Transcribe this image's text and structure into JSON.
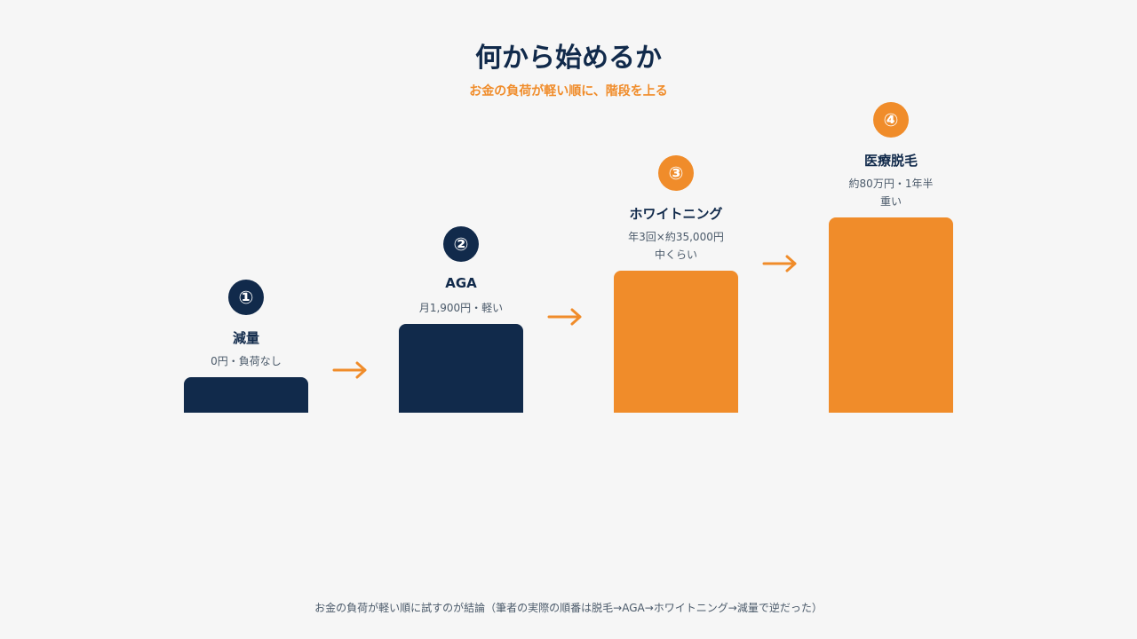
{
  "header": {
    "title": "何から始めるか",
    "subtitle": "お金の負荷が軽い順に、階段を上る"
  },
  "steps": [
    {
      "badge": "①",
      "label": "減量",
      "detail": "0円・負荷なし",
      "load_level": 1,
      "color": "#112a4b"
    },
    {
      "badge": "②",
      "label": "AGA",
      "detail": "月1,900円・軽い",
      "load_level": 2,
      "color": "#112a4b"
    },
    {
      "badge": "③",
      "label": "ホワイトニング",
      "detail": "年3回×約35,000円\n中くらい",
      "load_level": 3,
      "color": "#f08c2a"
    },
    {
      "badge": "④",
      "label": "医療脱毛",
      "detail": "約80万円・1年半\n重い",
      "load_level": 4,
      "color": "#f08c2a"
    }
  ],
  "arrow_color": "#f08c2a",
  "footnote": "お金の負荷が軽い順に試すのが結論（筆者の実際の順番は脱毛→AGA→ホワイトニング→減量で逆だった）"
}
